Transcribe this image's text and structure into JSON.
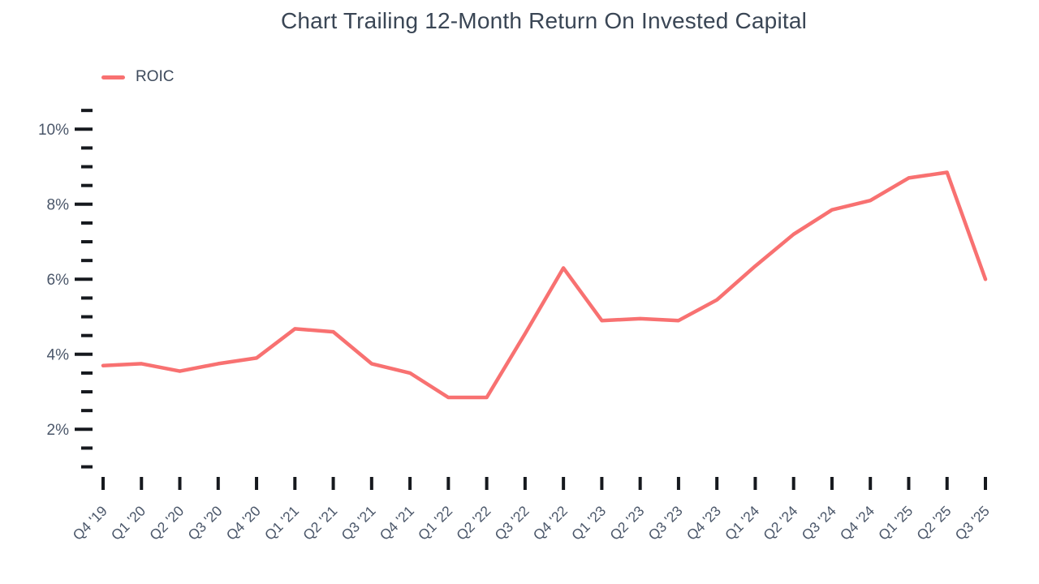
{
  "chart_data": {
    "type": "line",
    "title": "Chart Trailing 12-Month Return On Invested Capital",
    "xlabel": "",
    "ylabel": "",
    "grid": false,
    "legend": {
      "position": "top-left",
      "entries": [
        "ROIC"
      ]
    },
    "categories": [
      "Q4 '19",
      "Q1 '20",
      "Q2 '20",
      "Q3 '20",
      "Q4 '20",
      "Q1 '21",
      "Q2 '21",
      "Q3 '21",
      "Q4 '21",
      "Q1 '22",
      "Q2 '22",
      "Q3 '22",
      "Q4 '22",
      "Q1 '23",
      "Q2 '23",
      "Q3 '23",
      "Q4 '23",
      "Q1 '24",
      "Q2 '24",
      "Q3 '24",
      "Q4 '24",
      "Q1 '25",
      "Q2 '25",
      "Q3 '25"
    ],
    "series": [
      {
        "name": "ROIC",
        "color": "#F87171",
        "values": [
          3.7,
          3.75,
          3.55,
          3.75,
          3.9,
          4.68,
          4.6,
          3.75,
          3.5,
          2.85,
          2.85,
          4.55,
          6.3,
          4.9,
          4.95,
          4.9,
          5.45,
          6.35,
          7.2,
          7.85,
          8.1,
          8.7,
          8.85,
          6.0
        ]
      }
    ],
    "y_axis": {
      "unit": "percent",
      "range": [
        1.0,
        10.5
      ],
      "major_ticks": [
        2,
        4,
        6,
        8,
        10
      ],
      "major_tick_labels": [
        "2%",
        "4%",
        "6%",
        "8%",
        "10%"
      ],
      "minor_tick_step": 0.5
    },
    "colors": {
      "line": "#F87171",
      "title_text": "#3A4655",
      "legend_text": "#3D4A5C",
      "axis_label_text": "#4A5669",
      "tick_mark": "#16191E",
      "background": "#FFFFFF"
    }
  }
}
